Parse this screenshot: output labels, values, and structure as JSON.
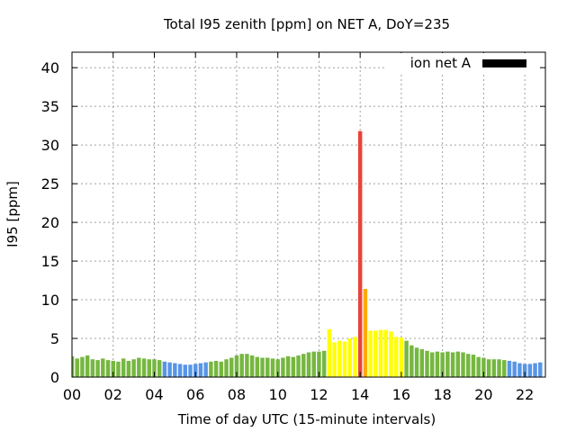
{
  "chart_data": {
    "type": "bar",
    "title": "Total I95 zenith [ppm] on NET A, DoY=235",
    "xlabel": "Time of day UTC (15-minute intervals)",
    "ylabel": "I95 [ppm]",
    "legend": {
      "label": "ion net A",
      "placement": "top-right",
      "swatch_color": "#000000"
    },
    "grid": true,
    "xlim": [
      0,
      23
    ],
    "ylim": [
      0,
      42
    ],
    "x_ticks": [
      "00",
      "02",
      "04",
      "06",
      "08",
      "10",
      "12",
      "14",
      "16",
      "18",
      "20",
      "22"
    ],
    "y_ticks": [
      "0",
      "5",
      "10",
      "15",
      "20",
      "25",
      "30",
      "35",
      "40"
    ],
    "bar_interval_hours": 0.25,
    "colors": {
      "green": "#76b740",
      "blue": "#5895e6",
      "yellow": "#ffff00",
      "orange": "#ffaa00",
      "red": "#e8433a"
    },
    "values": [
      2.7,
      2.4,
      2.6,
      2.8,
      2.3,
      2.2,
      2.4,
      2.2,
      2.1,
      2.0,
      2.4,
      2.1,
      2.3,
      2.5,
      2.4,
      2.3,
      2.3,
      2.2,
      2.0,
      1.9,
      1.8,
      1.7,
      1.6,
      1.6,
      1.7,
      1.8,
      1.9,
      2.0,
      2.1,
      2.0,
      2.3,
      2.5,
      2.8,
      3.0,
      3.0,
      2.8,
      2.6,
      2.5,
      2.5,
      2.4,
      2.3,
      2.5,
      2.7,
      2.6,
      2.8,
      3.0,
      3.2,
      3.3,
      3.3,
      3.4,
      6.2,
      4.5,
      4.7,
      4.6,
      5.0,
      5.2,
      31.8,
      11.4,
      6.0,
      6.0,
      6.1,
      6.1,
      5.9,
      5.2,
      5.1,
      4.7,
      4.1,
      3.8,
      3.6,
      3.4,
      3.2,
      3.3,
      3.2,
      3.3,
      3.2,
      3.3,
      3.2,
      3.0,
      2.9,
      2.6,
      2.5,
      2.3,
      2.3,
      2.3,
      2.2,
      2.1,
      2.0,
      1.8,
      1.7,
      1.7,
      1.8,
      1.9
    ],
    "bar_colors": [
      "green",
      "green",
      "green",
      "green",
      "green",
      "green",
      "green",
      "green",
      "green",
      "green",
      "green",
      "green",
      "green",
      "green",
      "green",
      "green",
      "green",
      "green",
      "blue",
      "blue",
      "blue",
      "blue",
      "blue",
      "blue",
      "blue",
      "blue",
      "blue",
      "green",
      "green",
      "green",
      "green",
      "green",
      "green",
      "green",
      "green",
      "green",
      "green",
      "green",
      "green",
      "green",
      "green",
      "green",
      "green",
      "green",
      "green",
      "green",
      "green",
      "green",
      "green",
      "green",
      "yellow",
      "yellow",
      "yellow",
      "yellow",
      "yellow",
      "yellow",
      "red",
      "orange",
      "yellow",
      "yellow",
      "yellow",
      "yellow",
      "yellow",
      "yellow",
      "yellow",
      "green",
      "green",
      "green",
      "green",
      "green",
      "green",
      "green",
      "green",
      "green",
      "green",
      "green",
      "green",
      "green",
      "green",
      "green",
      "green",
      "green",
      "green",
      "green",
      "green",
      "blue",
      "blue",
      "blue",
      "blue",
      "blue",
      "blue",
      "blue"
    ]
  }
}
